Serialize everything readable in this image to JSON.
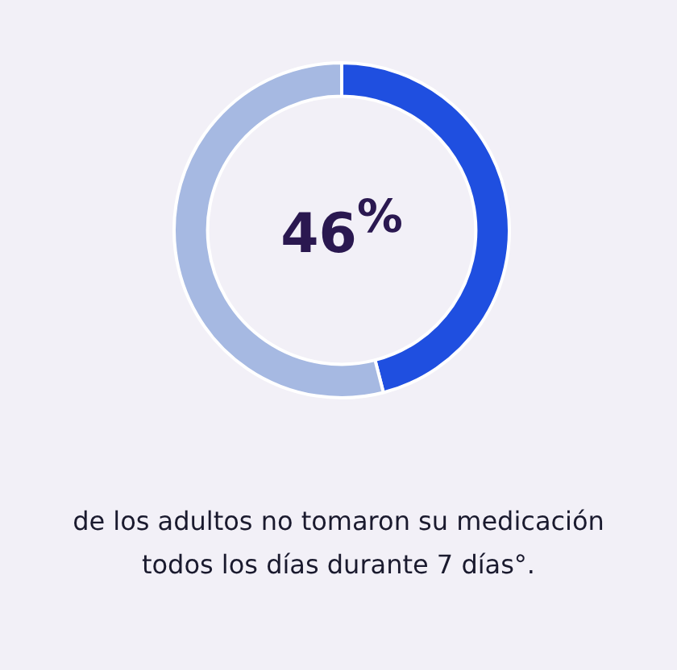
{
  "chart_data": {
    "type": "donut",
    "categories": [
      null,
      null
    ],
    "values": [
      46,
      54
    ],
    "colors": [
      "#1f4fe0",
      "#a6b9e2"
    ],
    "annotations": [
      "46$^{%}$",
      "de los adultos no tomaron su medicación todos los días durante 7 días°."
    ]
  }
}
